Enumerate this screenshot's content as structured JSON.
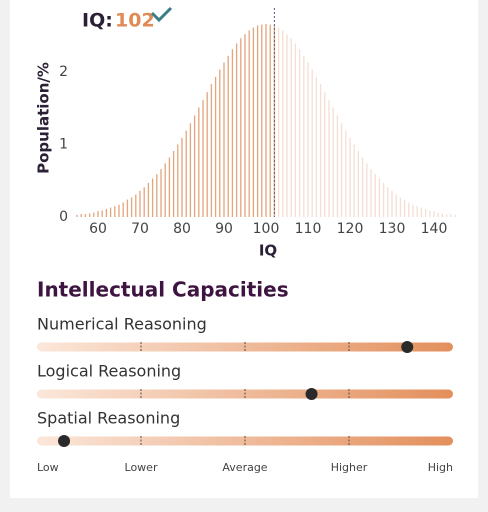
{
  "chart_data": {
    "type": "bar",
    "score_label": "IQ:",
    "score": 102,
    "ylabel": "Population/%",
    "xlabel": "IQ",
    "x": [
      55,
      56,
      57,
      58,
      59,
      60,
      61,
      62,
      63,
      64,
      65,
      66,
      67,
      68,
      69,
      70,
      71,
      72,
      73,
      74,
      75,
      76,
      77,
      78,
      79,
      80,
      81,
      82,
      83,
      84,
      85,
      86,
      87,
      88,
      89,
      90,
      91,
      92,
      93,
      94,
      95,
      96,
      97,
      98,
      99,
      100,
      101,
      102,
      103,
      104,
      105,
      106,
      107,
      108,
      109,
      110,
      111,
      112,
      113,
      114,
      115,
      116,
      117,
      118,
      119,
      120,
      121,
      122,
      123,
      124,
      125,
      126,
      127,
      128,
      129,
      130,
      131,
      132,
      133,
      134,
      135,
      136,
      137,
      138,
      139,
      140,
      141,
      142,
      143,
      144,
      145
    ],
    "values": [
      0.03,
      0.04,
      0.04,
      0.05,
      0.06,
      0.08,
      0.09,
      0.11,
      0.13,
      0.15,
      0.17,
      0.2,
      0.24,
      0.27,
      0.31,
      0.36,
      0.41,
      0.47,
      0.53,
      0.59,
      0.66,
      0.74,
      0.82,
      0.91,
      1.0,
      1.09,
      1.19,
      1.29,
      1.4,
      1.51,
      1.61,
      1.72,
      1.83,
      1.93,
      2.03,
      2.13,
      2.22,
      2.31,
      2.39,
      2.46,
      2.52,
      2.57,
      2.61,
      2.64,
      2.65,
      2.66,
      2.65,
      2.64,
      2.61,
      2.57,
      2.52,
      2.46,
      2.39,
      2.31,
      2.22,
      2.13,
      2.03,
      1.93,
      1.83,
      1.72,
      1.61,
      1.51,
      1.4,
      1.29,
      1.19,
      1.09,
      1.0,
      0.91,
      0.82,
      0.74,
      0.66,
      0.59,
      0.53,
      0.47,
      0.41,
      0.36,
      0.31,
      0.27,
      0.24,
      0.2,
      0.17,
      0.15,
      0.13,
      0.11,
      0.09,
      0.08,
      0.06,
      0.05,
      0.04,
      0.04,
      0.03
    ],
    "color": "#e3a57c",
    "color_above_score": "#f4dfd2",
    "score_color": "#e08a55",
    "xlim": [
      55,
      145
    ],
    "xticks": [
      60,
      70,
      80,
      90,
      100,
      110,
      120,
      130,
      140
    ],
    "ylim": [
      0,
      2.7
    ],
    "yticks": [
      0,
      1,
      2
    ]
  },
  "capacities": {
    "title": "Intellectual Capacities",
    "scale": [
      "Low",
      "Lower",
      "Average",
      "Higher",
      "High"
    ],
    "range": [
      0,
      4
    ],
    "items": [
      {
        "name": "Numerical Reasoning",
        "value": 3.56
      },
      {
        "name": "Logical Reasoning",
        "value": 2.64
      },
      {
        "name": "Spatial Reasoning",
        "value": 0.26
      }
    ]
  }
}
